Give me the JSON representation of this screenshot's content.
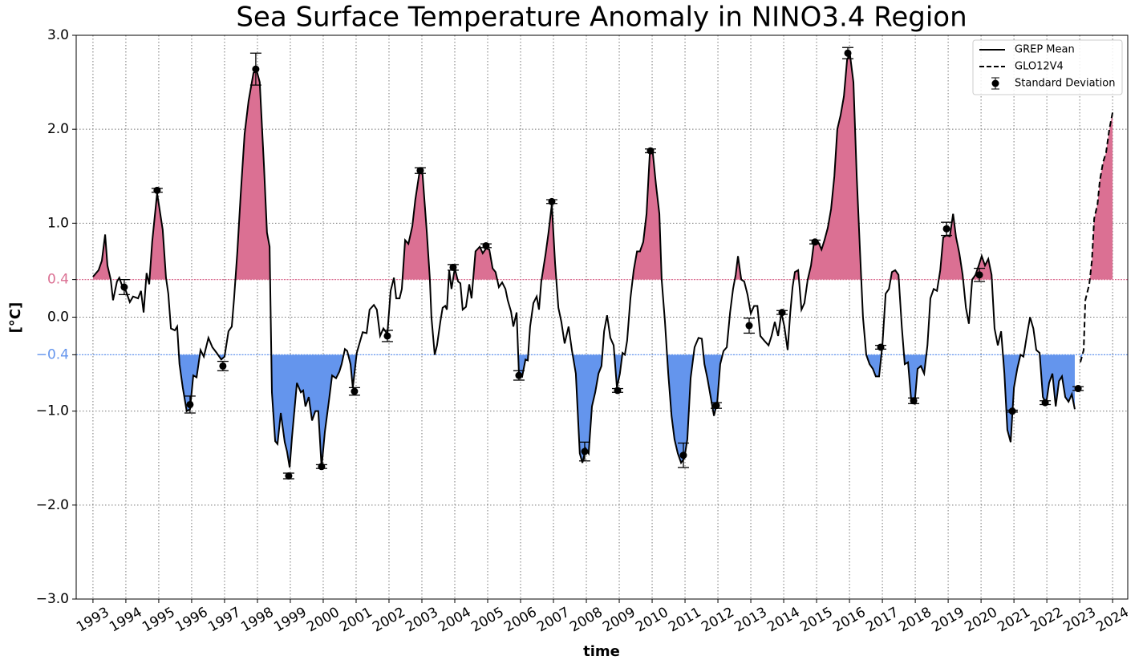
{
  "chart_data": {
    "type": "line",
    "title": "Sea Surface Temperature Anomaly in NINO3.4 Region",
    "xlabel": "time",
    "ylabel": "[°C]",
    "xlim": [
      1992.49,
      2024.46
    ],
    "ylim": [
      -3,
      3
    ],
    "xticks": [
      1993,
      1994,
      1995,
      1996,
      1997,
      1998,
      1999,
      2000,
      2001,
      2002,
      2003,
      2004,
      2005,
      2006,
      2007,
      2008,
      2009,
      2010,
      2011,
      2012,
      2013,
      2014,
      2015,
      2016,
      2017,
      2018,
      2019,
      2020,
      2021,
      2022,
      2023,
      2024
    ],
    "yticks": [
      {
        "value": -3,
        "label": "−3.0"
      },
      {
        "value": -2,
        "label": "−2.0"
      },
      {
        "value": -1,
        "label": "−1.0"
      },
      {
        "value": -0.4,
        "label": "−0.4"
      },
      {
        "value": 0,
        "label": "0.0"
      },
      {
        "value": 0.4,
        "label": "0.4"
      },
      {
        "value": 1,
        "label": "1.0"
      },
      {
        "value": 2,
        "label": "2.0"
      },
      {
        "value": 3,
        "label": "3.0"
      }
    ],
    "grid": true,
    "legend_loc": "upper right",
    "thresholds": [
      {
        "value": 0.4,
        "color": "#db7093",
        "side": "above"
      },
      {
        "value": -0.4,
        "color": "#6495ed",
        "side": "below"
      }
    ],
    "series": [
      {
        "name": "GREP Mean",
        "color": "#000000",
        "linestyle": "solid",
        "x": [
          1993.0,
          1993.17,
          1993.27,
          1993.37,
          1993.44,
          1993.54,
          1993.61,
          1993.73,
          1993.8,
          1993.9,
          1994.0,
          1994.12,
          1994.22,
          1994.37,
          1994.46,
          1994.54,
          1994.63,
          1994.71,
          1994.8,
          1994.95,
          1995.12,
          1995.22,
          1995.29,
          1995.37,
          1995.49,
          1995.56,
          1995.63,
          1995.73,
          1995.85,
          1995.95,
          1996.05,
          1996.15,
          1996.27,
          1996.37,
          1996.51,
          1996.63,
          1996.76,
          1996.9,
          1997.0,
          1997.12,
          1997.22,
          1997.29,
          1997.39,
          1997.49,
          1997.61,
          1997.73,
          1997.88,
          1997.98,
          1998.07,
          1998.2,
          1998.29,
          1998.37,
          1998.44,
          1998.54,
          1998.61,
          1998.71,
          1998.83,
          1998.9,
          1998.98,
          1999.05,
          1999.2,
          1999.32,
          1999.39,
          1999.46,
          1999.56,
          1999.66,
          1999.76,
          1999.85,
          1999.95,
          2000.05,
          2000.17,
          2000.27,
          2000.39,
          2000.49,
          2000.56,
          2000.66,
          2000.73,
          2000.83,
          2000.9,
          2001.02,
          2001.2,
          2001.32,
          2001.41,
          2001.54,
          2001.63,
          2001.73,
          2001.83,
          2001.95,
          2002.05,
          2002.15,
          2002.22,
          2002.32,
          2002.39,
          2002.49,
          2002.59,
          2002.71,
          2002.8,
          2002.93,
          2003.02,
          2003.15,
          2003.24,
          2003.29,
          2003.39,
          2003.46,
          2003.56,
          2003.63,
          2003.71,
          2003.76,
          2003.83,
          2003.9,
          2004.0,
          2004.1,
          2004.17,
          2004.24,
          2004.34,
          2004.44,
          2004.51,
          2004.63,
          2004.76,
          2004.85,
          2004.95,
          2005.05,
          2005.15,
          2005.24,
          2005.34,
          2005.44,
          2005.54,
          2005.61,
          2005.71,
          2005.78,
          2005.88,
          2005.95,
          2006.05,
          2006.15,
          2006.22,
          2006.29,
          2006.39,
          2006.49,
          2006.56,
          2006.63,
          2006.76,
          2006.85,
          2006.95,
          2007.05,
          2007.15,
          2007.24,
          2007.34,
          2007.46,
          2007.56,
          2007.68,
          2007.8,
          2007.88,
          2007.98,
          2008.07,
          2008.17,
          2008.27,
          2008.37,
          2008.46,
          2008.54,
          2008.63,
          2008.73,
          2008.83,
          2008.93,
          2009.02,
          2009.1,
          2009.17,
          2009.24,
          2009.34,
          2009.44,
          2009.54,
          2009.63,
          2009.73,
          2009.83,
          2009.93,
          2010.02,
          2010.12,
          2010.22,
          2010.29,
          2010.39,
          2010.49,
          2010.59,
          2010.68,
          2010.78,
          2010.88,
          2010.98,
          2011.07,
          2011.17,
          2011.29,
          2011.41,
          2011.51,
          2011.59,
          2011.68,
          2011.78,
          2011.88,
          2011.98,
          2012.07,
          2012.17,
          2012.27,
          2012.37,
          2012.46,
          2012.54,
          2012.61,
          2012.71,
          2012.8,
          2012.9,
          2013.0,
          2013.1,
          2013.2,
          2013.29,
          2013.41,
          2013.54,
          2013.63,
          2013.73,
          2013.83,
          2013.93,
          2014.02,
          2014.12,
          2014.2,
          2014.27,
          2014.34,
          2014.44,
          2014.54,
          2014.63,
          2014.73,
          2014.83,
          2014.93,
          2015.05,
          2015.15,
          2015.24,
          2015.34,
          2015.44,
          2015.54,
          2015.63,
          2015.73,
          2015.83,
          2015.93,
          2016.02,
          2016.12,
          2016.22,
          2016.32,
          2016.41,
          2016.51,
          2016.61,
          2016.71,
          2016.8,
          2016.9,
          2017.0,
          2017.1,
          2017.2,
          2017.29,
          2017.39,
          2017.49,
          2017.59,
          2017.68,
          2017.78,
          2017.88,
          2017.98,
          2018.07,
          2018.17,
          2018.27,
          2018.37,
          2018.46,
          2018.56,
          2018.66,
          2018.76,
          2018.85,
          2018.95,
          2019.05,
          2019.15,
          2019.24,
          2019.34,
          2019.44,
          2019.54,
          2019.63,
          2019.73,
          2019.83,
          2019.93,
          2020.02,
          2020.12,
          2020.22,
          2020.32,
          2020.41,
          2020.51,
          2020.61,
          2020.71,
          2020.8,
          2020.9,
          2021.0,
          2021.1,
          2021.2,
          2021.29,
          2021.39,
          2021.49,
          2021.59,
          2021.68,
          2021.78,
          2021.88,
          2021.98,
          2022.07,
          2022.17,
          2022.27,
          2022.37,
          2022.46,
          2022.56,
          2022.66,
          2022.76,
          2022.85
        ],
        "values": [
          0.43,
          0.5,
          0.6,
          0.88,
          0.55,
          0.4,
          0.18,
          0.38,
          0.42,
          0.32,
          0.28,
          0.16,
          0.22,
          0.2,
          0.28,
          0.05,
          0.47,
          0.35,
          0.8,
          1.32,
          0.93,
          0.42,
          0.25,
          -0.12,
          -0.14,
          -0.1,
          -0.5,
          -0.75,
          -1.0,
          -0.98,
          -0.62,
          -0.64,
          -0.35,
          -0.42,
          -0.22,
          -0.32,
          -0.38,
          -0.45,
          -0.42,
          -0.15,
          -0.1,
          0.2,
          0.7,
          1.3,
          1.95,
          2.3,
          2.6,
          2.62,
          2.5,
          1.6,
          0.9,
          0.75,
          -0.8,
          -1.32,
          -1.35,
          -1.02,
          -1.33,
          -1.43,
          -1.6,
          -1.28,
          -0.7,
          -0.8,
          -0.78,
          -0.95,
          -0.85,
          -1.1,
          -1.0,
          -1.0,
          -1.6,
          -1.22,
          -0.9,
          -0.62,
          -0.65,
          -0.58,
          -0.5,
          -0.34,
          -0.36,
          -0.5,
          -0.75,
          -0.38,
          -0.16,
          -0.17,
          0.08,
          0.13,
          0.08,
          -0.2,
          -0.12,
          -0.18,
          0.28,
          0.42,
          0.2,
          0.2,
          0.3,
          0.82,
          0.78,
          0.97,
          1.25,
          1.55,
          1.52,
          0.9,
          0.42,
          0.0,
          -0.4,
          -0.3,
          -0.05,
          0.1,
          0.12,
          0.08,
          0.5,
          0.3,
          0.52,
          0.38,
          0.36,
          0.08,
          0.11,
          0.35,
          0.2,
          0.7,
          0.75,
          0.68,
          0.73,
          0.72,
          0.52,
          0.48,
          0.32,
          0.37,
          0.3,
          0.18,
          0.06,
          -0.1,
          0.05,
          -0.6,
          -0.63,
          -0.45,
          -0.46,
          -0.1,
          0.15,
          0.22,
          0.08,
          0.38,
          0.67,
          0.9,
          1.2,
          0.57,
          0.1,
          -0.05,
          -0.28,
          -0.1,
          -0.35,
          -0.6,
          -1.45,
          -1.55,
          -1.4,
          -1.45,
          -0.95,
          -0.8,
          -0.6,
          -0.52,
          -0.15,
          0.02,
          -0.22,
          -0.3,
          -0.75,
          -0.6,
          -0.38,
          -0.4,
          -0.25,
          0.2,
          0.5,
          0.7,
          0.7,
          0.8,
          1.1,
          1.75,
          1.75,
          1.4,
          1.1,
          0.4,
          -0.05,
          -0.6,
          -1.05,
          -1.3,
          -1.45,
          -1.55,
          -1.5,
          -1.3,
          -0.65,
          -0.32,
          -0.22,
          -0.23,
          -0.5,
          -0.65,
          -0.85,
          -1.05,
          -0.9,
          -0.5,
          -0.36,
          -0.32,
          0.05,
          0.3,
          0.45,
          0.65,
          0.4,
          0.38,
          0.24,
          0.04,
          0.12,
          0.12,
          -0.2,
          -0.25,
          -0.3,
          -0.2,
          -0.05,
          -0.2,
          0.05,
          -0.1,
          -0.35,
          0.05,
          0.32,
          0.48,
          0.5,
          0.08,
          0.15,
          0.4,
          0.55,
          0.82,
          0.8,
          0.72,
          0.82,
          0.95,
          1.15,
          1.5,
          2.0,
          2.15,
          2.35,
          2.75,
          2.78,
          2.5,
          1.5,
          0.7,
          0.0,
          -0.4,
          -0.5,
          -0.55,
          -0.63,
          -0.63,
          -0.3,
          0.25,
          0.3,
          0.48,
          0.5,
          0.45,
          -0.1,
          -0.5,
          -0.48,
          -0.9,
          -0.92,
          -0.55,
          -0.52,
          -0.6,
          -0.3,
          0.2,
          0.3,
          0.28,
          0.5,
          0.85,
          0.87,
          0.86,
          1.1,
          0.85,
          0.68,
          0.45,
          0.1,
          -0.07,
          0.4,
          0.45,
          0.55,
          0.65,
          0.55,
          0.62,
          0.45,
          -0.12,
          -0.3,
          -0.15,
          -0.6,
          -1.2,
          -1.33,
          -0.75,
          -0.55,
          -0.4,
          -0.42,
          -0.2,
          0.0,
          -0.12,
          -0.35,
          -0.38,
          -0.85,
          -0.92,
          -0.7,
          -0.6,
          -0.95,
          -0.68,
          -0.63,
          -0.85,
          -0.9,
          -0.82,
          -0.98
        ]
      },
      {
        "name": "GLO12V4",
        "color": "#000000",
        "linestyle": "dashed",
        "x": [
          2023.02,
          2023.12,
          2023.17,
          2023.29,
          2023.37,
          2023.44,
          2023.54,
          2023.61,
          2023.71,
          2023.8,
          2023.9,
          2024.0
        ],
        "values": [
          -0.48,
          -0.35,
          0.18,
          0.35,
          0.6,
          1.05,
          1.2,
          1.45,
          1.65,
          1.75,
          2.0,
          2.18
        ]
      },
      {
        "name": "Standard Deviation",
        "type": "errorbar",
        "color": "#000000",
        "x": [
          1993.95,
          1994.95,
          1995.95,
          1996.95,
          1997.95,
          1998.95,
          1999.95,
          2000.95,
          2001.95,
          2002.95,
          2003.95,
          2004.95,
          2005.95,
          2006.95,
          2007.95,
          2008.95,
          2009.95,
          2010.95,
          2011.95,
          2012.95,
          2013.95,
          2014.95,
          2015.95,
          2016.95,
          2017.95,
          2018.95,
          2019.95,
          2020.95,
          2021.95,
          2022.95
        ],
        "values": [
          0.32,
          1.35,
          -0.93,
          -0.52,
          2.64,
          -1.69,
          -1.59,
          -0.79,
          -0.2,
          1.56,
          0.53,
          0.76,
          -0.62,
          1.23,
          -1.43,
          -0.78,
          1.77,
          -1.47,
          -0.94,
          -0.09,
          0.05,
          0.8,
          2.81,
          -0.32,
          -0.89,
          0.94,
          0.45,
          -1.0,
          -0.91,
          -0.76
        ],
        "errors": [
          0.08,
          0.02,
          0.09,
          0.05,
          0.17,
          0.03,
          0.02,
          0.04,
          0.06,
          0.03,
          0.03,
          0.02,
          0.05,
          0.02,
          0.1,
          0.02,
          0.02,
          0.13,
          0.03,
          0.08,
          0.02,
          0.02,
          0.06,
          0.02,
          0.03,
          0.07,
          0.07,
          0.01,
          0.02,
          0.02
        ]
      }
    ]
  }
}
